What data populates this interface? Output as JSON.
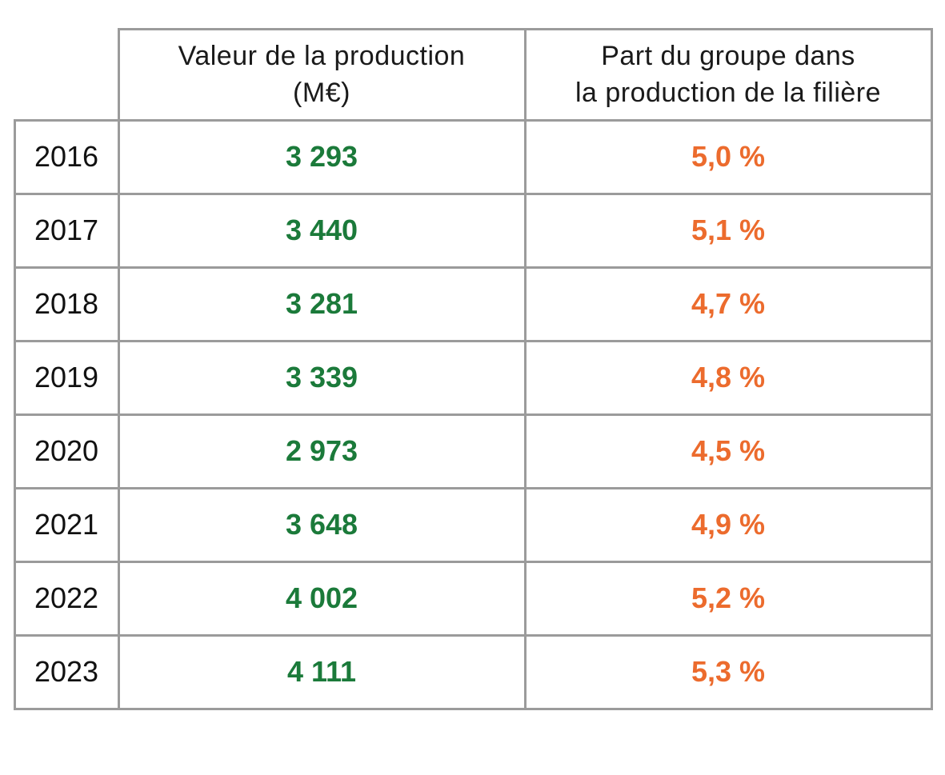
{
  "colors": {
    "value": "#1b7a3a",
    "share": "#ec6b2d",
    "grid": "#9b9b9b",
    "text": "#111111"
  },
  "header": {
    "col1_line1": "Valeur de la production",
    "col1_line2": "(M€)",
    "col2_line1": "Part du groupe dans",
    "col2_line2": "la production de la filière"
  },
  "rows": [
    {
      "year": "2016",
      "value": "3 293",
      "share": "5,0 %"
    },
    {
      "year": "2017",
      "value": "3 440",
      "share": "5,1 %"
    },
    {
      "year": "2018",
      "value": "3 281",
      "share": "4,7 %"
    },
    {
      "year": "2019",
      "value": "3 339",
      "share": "4,8 %"
    },
    {
      "year": "2020",
      "value": "2 973",
      "share": "4,5 %"
    },
    {
      "year": "2021",
      "value": "3 648",
      "share": "4,9 %"
    },
    {
      "year": "2022",
      "value": "4 002",
      "share": "5,2 %"
    },
    {
      "year": "2023",
      "value": "4 111",
      "share": "5,3 %"
    }
  ],
  "chart_data": {
    "type": "table",
    "columns": [
      "",
      "Valeur de la production (M€)",
      "Part du groupe dans la production de la filière"
    ],
    "rows": [
      [
        "2016",
        "3 293",
        "5,0 %"
      ],
      [
        "2017",
        "3 440",
        "5,1 %"
      ],
      [
        "2018",
        "3 281",
        "4,7 %"
      ],
      [
        "2019",
        "3 339",
        "4,8 %"
      ],
      [
        "2020",
        "2 973",
        "4,5 %"
      ],
      [
        "2021",
        "3 648",
        "4,9 %"
      ],
      [
        "2022",
        "4 002",
        "5,2 %"
      ],
      [
        "2023",
        "4 111",
        "5,3 %"
      ]
    ]
  }
}
